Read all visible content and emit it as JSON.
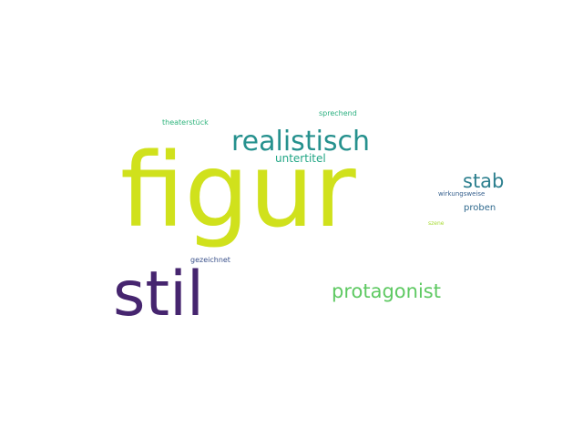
{
  "words": [
    {
      "id": "figur",
      "text": "figur",
      "color": "#d0e11c"
    },
    {
      "id": "stil",
      "text": "stil",
      "color": "#46256f"
    },
    {
      "id": "realistisch",
      "text": "realistisch",
      "color": "#26918e"
    },
    {
      "id": "protagonist",
      "text": "protagonist",
      "color": "#5ec962"
    },
    {
      "id": "stab",
      "text": "stab",
      "color": "#2c7f8e"
    },
    {
      "id": "untertitel",
      "text": "untertitel",
      "color": "#21a685"
    },
    {
      "id": "proben",
      "text": "proben",
      "color": "#306a8e"
    },
    {
      "id": "theaterstueck",
      "text": "theaterstück",
      "color": "#2fb47c"
    },
    {
      "id": "sprechend",
      "text": "sprechend",
      "color": "#29af7f"
    },
    {
      "id": "wirkungsweise",
      "text": "wirkungsweise",
      "color": "#355f8d"
    },
    {
      "id": "szene",
      "text": "szene",
      "color": "#a8db34"
    },
    {
      "id": "gezeichnet",
      "text": "gezeichnet",
      "color": "#3b528b"
    }
  ]
}
